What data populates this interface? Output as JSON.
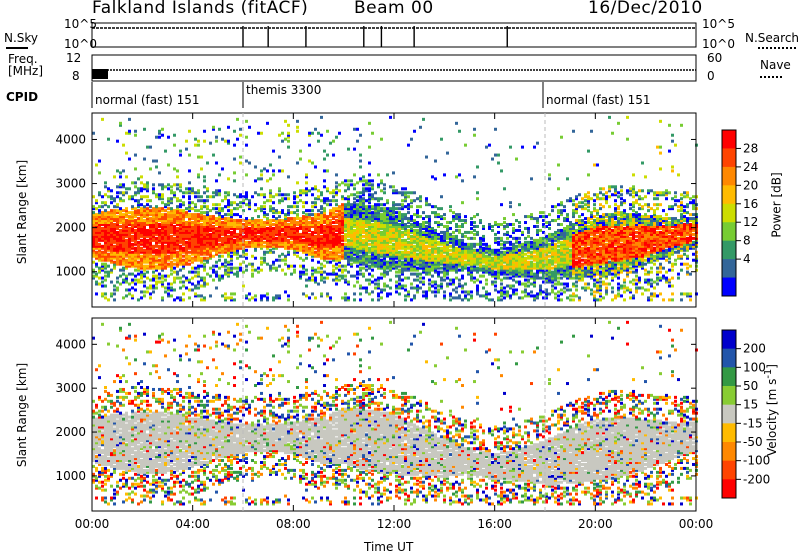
{
  "header": {
    "station": "Falkland Islands (fitACF)",
    "beam": "Beam 00",
    "date": "16/Dec/2010"
  },
  "strip": {
    "nsky_label": "N.Sky",
    "nsearch_label": "N.Search",
    "freq_label_line1": "Freq.",
    "freq_label_line2": "[MHz]",
    "nave_label": "Nave",
    "cpid_label": "CPID",
    "left_ticks_top": [
      "10^5",
      "10^0"
    ],
    "right_ticks_top": [
      "10^5",
      "10^0"
    ],
    "left_ticks_freq": [
      "12",
      "8"
    ],
    "right_ticks_nave": [
      "60",
      "0"
    ],
    "cpid_segments": [
      {
        "label": "normal (fast) 151",
        "start_h": 0,
        "end_h": 6
      },
      {
        "label": "themis 3300",
        "start_h": 6,
        "end_h": 18
      },
      {
        "label": "normal (fast) 151",
        "start_h": 18,
        "end_h": 24
      }
    ]
  },
  "chart_data": [
    {
      "type": "heatmap",
      "panel": "power",
      "ylabel": "Slant Range [km]",
      "yticks": [
        1000,
        2000,
        3000,
        4000
      ],
      "ylim": [
        200,
        4600
      ],
      "xlim_hours": [
        0,
        24
      ],
      "colorbar_label": "Power [dB]",
      "colorbar_ticks": [
        "28",
        "24",
        "20",
        "16",
        "12",
        "8",
        "4"
      ],
      "colors": [
        "#ff0000",
        "#ff4400",
        "#ff8800",
        "#ffbb00",
        "#ccdd00",
        "#77cc33",
        "#339966",
        "#336699",
        "#0000ff"
      ],
      "echo_band": [
        {
          "t": 0,
          "range": 1800
        },
        {
          "t": 2,
          "range": 1750
        },
        {
          "t": 4,
          "range": 1750
        },
        {
          "t": 6,
          "range": 1850
        },
        {
          "t": 8,
          "range": 1850
        },
        {
          "t": 9,
          "range": 1800
        },
        {
          "t": 10,
          "range": 1900
        },
        {
          "t": 12,
          "range": 1700
        },
        {
          "t": 14,
          "range": 1400
        },
        {
          "t": 16,
          "range": 1200
        },
        {
          "t": 18,
          "range": 1300
        },
        {
          "t": 20,
          "range": 1600
        },
        {
          "t": 22,
          "range": 1700
        },
        {
          "t": 24,
          "range": 1900
        }
      ]
    },
    {
      "type": "heatmap",
      "panel": "velocity",
      "ylabel": "Slant Range [km]",
      "yticks": [
        1000,
        2000,
        3000,
        4000
      ],
      "ylim": [
        200,
        4600
      ],
      "xlim_hours": [
        0,
        24
      ],
      "xticks": [
        "00:00",
        "04:00",
        "08:00",
        "12:00",
        "16:00",
        "20:00",
        "00:00"
      ],
      "xlabel": "Time UT",
      "colorbar_label": "Velocity [m s^-1]",
      "colorbar_ticks": [
        "200",
        "100",
        "50",
        "15",
        "-15",
        "-50",
        "-100",
        "-200"
      ],
      "colors": [
        "#0000cc",
        "#2255aa",
        "#339944",
        "#88cc33",
        "#c8c8c0",
        "#ffbb00",
        "#ff8800",
        "#ff4400",
        "#ff0000"
      ]
    }
  ]
}
